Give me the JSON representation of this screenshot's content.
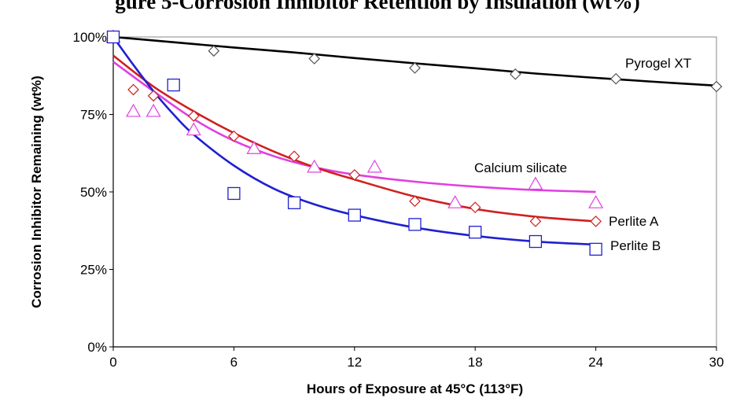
{
  "title": "gure 5-Corrosion Inhibitor Retention by Insulation (wt%)",
  "chart_data": {
    "type": "scatter",
    "xlabel": "Hours of Exposure at 45°C (113°F)",
    "ylabel": "Corrosion Inhibitor Remaining (wt%)",
    "xlim": [
      0,
      30
    ],
    "ylim": [
      0,
      100
    ],
    "xticks": [
      0,
      6,
      12,
      18,
      24,
      30
    ],
    "xtick_labels": [
      "0",
      "6",
      "12",
      "18",
      "24",
      "30"
    ],
    "yticks": [
      0,
      25,
      50,
      75,
      100
    ],
    "ytick_labels": [
      "0%",
      "25%",
      "50%",
      "75%",
      "100%"
    ],
    "grid": false,
    "series": [
      {
        "name": "Pyrogel XT",
        "color": "#000000",
        "marker": "diamond",
        "points": [
          [
            0,
            100
          ],
          [
            5,
            95.5
          ],
          [
            10,
            93
          ],
          [
            15,
            90
          ],
          [
            20,
            88
          ],
          [
            25,
            86.5
          ],
          [
            30,
            84
          ]
        ],
        "fit": [
          [
            0,
            100
          ],
          [
            3,
            98.3
          ],
          [
            6,
            96.6
          ],
          [
            9,
            95
          ],
          [
            12,
            93.2
          ],
          [
            15,
            91.5
          ],
          [
            18,
            89.9
          ],
          [
            21,
            88.2
          ],
          [
            24,
            86.8
          ],
          [
            27,
            85.5
          ],
          [
            30,
            84.3
          ]
        ]
      },
      {
        "name": "Calcium silicate",
        "color": "#e040e0",
        "marker": "triangle",
        "points": [
          [
            0,
            100
          ],
          [
            1,
            76
          ],
          [
            2,
            76
          ],
          [
            4,
            70
          ],
          [
            7,
            64
          ],
          [
            10,
            58
          ],
          [
            13,
            58
          ],
          [
            17,
            46.5
          ],
          [
            21,
            52.5
          ],
          [
            24,
            46.5
          ]
        ],
        "fit": [
          [
            0,
            92
          ],
          [
            2,
            82.5
          ],
          [
            4,
            73.5
          ],
          [
            6,
            66.5
          ],
          [
            8,
            61.5
          ],
          [
            10,
            58
          ],
          [
            12,
            55.6
          ],
          [
            15,
            53.3
          ],
          [
            18,
            51.7
          ],
          [
            21,
            50.6
          ],
          [
            24,
            50
          ]
        ]
      },
      {
        "name": "Perlite A",
        "color": "#d02020",
        "marker": "diamond",
        "points": [
          [
            0,
            100
          ],
          [
            1,
            83
          ],
          [
            2,
            81
          ],
          [
            4,
            74.5
          ],
          [
            6,
            68
          ],
          [
            9,
            61.5
          ],
          [
            12,
            55.5
          ],
          [
            15,
            47
          ],
          [
            18,
            45
          ],
          [
            21,
            40.5
          ],
          [
            24,
            40.5
          ]
        ],
        "fit": [
          [
            0,
            94
          ],
          [
            2,
            84
          ],
          [
            4,
            76
          ],
          [
            6,
            69
          ],
          [
            8,
            63
          ],
          [
            10,
            58
          ],
          [
            12,
            54
          ],
          [
            15,
            48.5
          ],
          [
            18,
            44.5
          ],
          [
            21,
            42
          ],
          [
            24,
            40.5
          ]
        ]
      },
      {
        "name": "Perlite B",
        "color": "#2020d0",
        "marker": "square",
        "points": [
          [
            0,
            100
          ],
          [
            3,
            84.5
          ],
          [
            6,
            49.5
          ],
          [
            9,
            46.5
          ],
          [
            12,
            42.5
          ],
          [
            15,
            39.5
          ],
          [
            18,
            37
          ],
          [
            21,
            34
          ],
          [
            24,
            31.5
          ]
        ],
        "fit": [
          [
            0,
            100
          ],
          [
            1,
            91
          ],
          [
            2,
            82.5
          ],
          [
            3,
            75
          ],
          [
            4,
            68.5
          ],
          [
            6,
            58.5
          ],
          [
            8,
            51
          ],
          [
            10,
            46
          ],
          [
            12,
            42.5
          ],
          [
            15,
            38.5
          ],
          [
            18,
            35.8
          ],
          [
            21,
            34
          ],
          [
            24,
            33
          ]
        ]
      }
    ]
  }
}
